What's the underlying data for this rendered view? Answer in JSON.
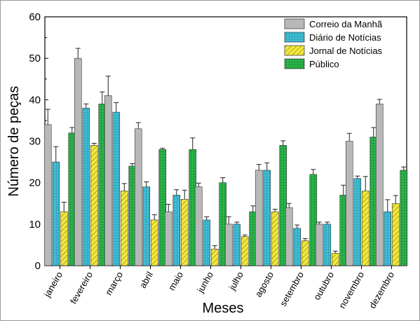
{
  "chart_data": {
    "type": "bar",
    "title": "",
    "xlabel": "Meses",
    "ylabel": "Número de peças",
    "ylim": [
      0,
      60
    ],
    "yticks": [
      "0",
      "10",
      "20",
      "30",
      "40",
      "50",
      "60"
    ],
    "grid": false,
    "legend_position": "top-right",
    "categories": [
      "janeiro",
      "fevereiro",
      "março",
      "abril",
      "maio",
      "junho",
      "julho",
      "agosto",
      "setembro",
      "outubro",
      "novembro",
      "dezembro"
    ],
    "series": [
      {
        "name": "Correio da Manhã",
        "color": "#b8b8b8",
        "pattern": "solid",
        "values": [
          34,
          50,
          41,
          33,
          13,
          19,
          10,
          23,
          14,
          10,
          30,
          39
        ],
        "errors": [
          3.7,
          2.4,
          4.7,
          1.5,
          1.8,
          0.9,
          1.8,
          1.4,
          1.0,
          0.5,
          1.9,
          1.1
        ]
      },
      {
        "name": "Diário de Notícias",
        "color": "#3fbfd8",
        "pattern": "grid",
        "values": [
          25,
          38,
          37,
          19,
          17,
          11,
          10,
          23,
          9,
          10,
          21,
          13
        ],
        "errors": [
          3.7,
          1.0,
          2.3,
          1.2,
          1.3,
          0.8,
          0.5,
          1.8,
          0.8,
          0.5,
          0.6,
          2.9
        ]
      },
      {
        "name": "Jornal de Notícias",
        "color": "#f2e83a",
        "pattern": "diagonal",
        "values": [
          13,
          29,
          18,
          11,
          16,
          4,
          7,
          13,
          6,
          3,
          18,
          15
        ],
        "errors": [
          2.3,
          0.5,
          1.8,
          1.3,
          2.2,
          0.8,
          0.4,
          0.6,
          0.5,
          0.5,
          3.5,
          1.9
        ]
      },
      {
        "name": "Público",
        "color": "#2ab84a",
        "pattern": "grid",
        "values": [
          32,
          39,
          24,
          28,
          28,
          20,
          13,
          29,
          22,
          17,
          31,
          23
        ],
        "errors": [
          1.3,
          2.9,
          0.6,
          0.3,
          2.8,
          1.2,
          1.4,
          1.1,
          1.2,
          2.4,
          2.3,
          0.8
        ]
      }
    ]
  }
}
